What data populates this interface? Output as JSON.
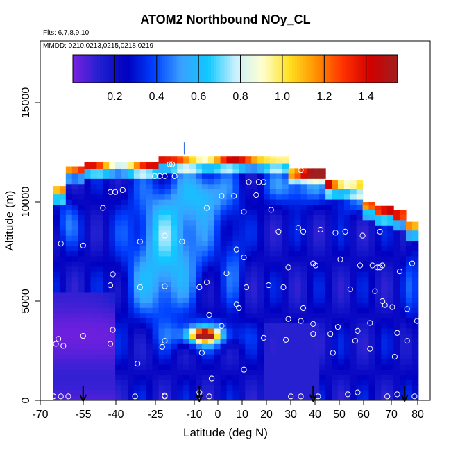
{
  "chart_data": {
    "type": "heatmap",
    "title": "ATOM2 Northbound NOy_CL",
    "flights_label": "Flts: 6,7,8,9,10",
    "dates_label": "MMDD: 0210,0213,0215,0218,0219",
    "xlabel": "Latitude (deg N)",
    "ylabel": "Altitude (m)",
    "xlim": [
      -70,
      85
    ],
    "ylim": [
      0,
      17500
    ],
    "x_ticks": [
      {
        "value": -70,
        "label": "-70"
      },
      {
        "value": -55,
        "label": "-55"
      },
      {
        "value": -40,
        "label": "-40"
      },
      {
        "value": -25,
        "label": "-25"
      },
      {
        "value": -10,
        "label": "-10"
      },
      {
        "value": 0,
        "label": "0"
      },
      {
        "value": 10,
        "label": "10"
      },
      {
        "value": 20,
        "label": "20"
      },
      {
        "value": 30,
        "label": "30"
      },
      {
        "value": 40,
        "label": "40"
      },
      {
        "value": 50,
        "label": "50"
      },
      {
        "value": 60,
        "label": "60"
      },
      {
        "value": 70,
        "label": "70"
      },
      {
        "value": 80,
        "label": "80"
      }
    ],
    "y_ticks": [
      {
        "value": 0,
        "label": "0"
      },
      {
        "value": 5000,
        "label": "5000"
      },
      {
        "value": 10000,
        "label": "10000"
      },
      {
        "value": 15000,
        "label": "15000"
      }
    ],
    "colorbar": {
      "min": 0.0,
      "max": 1.55,
      "ticks": [
        {
          "value": 0.2,
          "label": "0.2"
        },
        {
          "value": 0.4,
          "label": "0.4"
        },
        {
          "value": 0.6,
          "label": "0.6"
        },
        {
          "value": 0.8,
          "label": "0.8"
        },
        {
          "value": 1.0,
          "label": "1.0"
        },
        {
          "value": 1.2,
          "label": "1.2"
        },
        {
          "value": 1.4,
          "label": "1.4"
        }
      ],
      "colors": [
        "#7a20e0",
        "#2020d0",
        "#0000c0",
        "#0040ff",
        "#3aa0ff",
        "#10c8ff",
        "#c8f0ff",
        "#ffffd0",
        "#ffe020",
        "#ff9000",
        "#ff3000",
        "#d00000",
        "#a02020"
      ]
    },
    "profile_latitudes": [
      -55,
      -8,
      38,
      75
    ],
    "sample_points": [
      [
        -67,
        200
      ],
      [
        -64,
        200
      ],
      [
        -61,
        200
      ],
      [
        -63,
        2750
      ],
      [
        -66,
        2850
      ],
      [
        -65,
        3100
      ],
      [
        -55,
        3250
      ],
      [
        -44,
        2850
      ],
      [
        -43,
        3550
      ],
      [
        -44,
        5800
      ],
      [
        -43,
        6350
      ],
      [
        -55,
        7800
      ],
      [
        -64,
        7900
      ],
      [
        -47,
        9700
      ],
      [
        -44,
        10500
      ],
      [
        -42,
        10500
      ],
      [
        -39,
        10600
      ],
      [
        -26,
        11300
      ],
      [
        -24,
        11300
      ],
      [
        -22,
        11300
      ],
      [
        -18,
        11300
      ],
      [
        -20,
        11900
      ],
      [
        -19,
        11900
      ],
      [
        -33,
        1850
      ],
      [
        -34,
        200
      ],
      [
        -22,
        200
      ],
      [
        -22,
        250
      ],
      [
        -23,
        2700
      ],
      [
        -22,
        3000
      ],
      [
        -22,
        5750
      ],
      [
        -15,
        8000
      ],
      [
        -32,
        5700
      ],
      [
        -32,
        8000
      ],
      [
        -22,
        8300
      ],
      [
        -8,
        200
      ],
      [
        -8,
        400
      ],
      [
        -4,
        200
      ],
      [
        -3,
        1100
      ],
      [
        -7,
        2400
      ],
      [
        -8,
        5700
      ],
      [
        -5,
        5950
      ],
      [
        -4,
        4300
      ],
      [
        1,
        3750
      ],
      [
        3,
        6400
      ],
      [
        1,
        10300
      ],
      [
        -5,
        9700
      ],
      [
        6,
        10300
      ],
      [
        7,
        4850
      ],
      [
        7,
        7600
      ],
      [
        8,
        4650
      ],
      [
        10,
        7200
      ],
      [
        10,
        1550
      ],
      [
        12,
        11000
      ],
      [
        11,
        5700
      ],
      [
        10,
        9500
      ],
      [
        16,
        11000
      ],
      [
        18,
        11000
      ],
      [
        15,
        10350
      ],
      [
        21,
        9600
      ],
      [
        18,
        3150
      ],
      [
        20,
        5800
      ],
      [
        24,
        8500
      ],
      [
        26,
        5700
      ],
      [
        27,
        3050
      ],
      [
        28,
        4100
      ],
      [
        28,
        6700
      ],
      [
        29,
        200
      ],
      [
        32,
        8700
      ],
      [
        33,
        200
      ],
      [
        33,
        4000
      ],
      [
        34,
        4650
      ],
      [
        34,
        8500
      ],
      [
        33,
        11600
      ],
      [
        38,
        11900
      ],
      [
        38,
        6900
      ],
      [
        39,
        6800
      ],
      [
        38,
        3850
      ],
      [
        38,
        3350
      ],
      [
        40,
        200
      ],
      [
        41,
        8600
      ],
      [
        45,
        3350
      ],
      [
        46,
        2400
      ],
      [
        48,
        3700
      ],
      [
        47,
        8450
      ],
      [
        49,
        7100
      ],
      [
        51,
        8500
      ],
      [
        52,
        300
      ],
      [
        53,
        5600
      ],
      [
        55,
        3000
      ],
      [
        56,
        3500
      ],
      [
        56,
        400
      ],
      [
        57,
        6800
      ],
      [
        58,
        8300
      ],
      [
        61,
        2600
      ],
      [
        62,
        6800
      ],
      [
        61,
        3900
      ],
      [
        63,
        5500
      ],
      [
        64,
        6700
      ],
      [
        65,
        6700
      ],
      [
        65,
        8500
      ],
      [
        66,
        6800
      ],
      [
        66,
        5000
      ],
      [
        67,
        4800
      ],
      [
        68,
        200
      ],
      [
        70,
        4700
      ],
      [
        71,
        2200
      ],
      [
        72,
        3400
      ],
      [
        73,
        6500
      ],
      [
        72,
        300
      ],
      [
        76,
        3000
      ],
      [
        76,
        4600
      ],
      [
        78,
        6900
      ],
      [
        80,
        4000
      ],
      [
        79,
        200
      ]
    ]
  }
}
